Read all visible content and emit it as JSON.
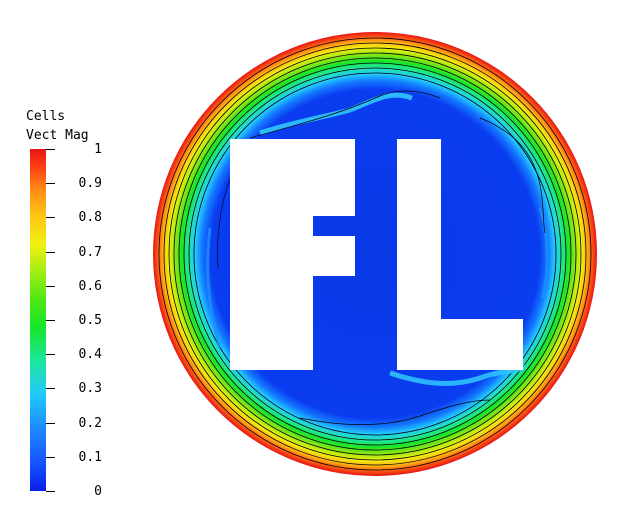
{
  "legend": {
    "title_line1": "Cells",
    "title_line2": "Vect Mag",
    "ticks": [
      "1",
      "0.9",
      "0.8",
      "0.7",
      "0.6",
      "0.5",
      "0.4",
      "0.3",
      "0.2",
      "0.1",
      "0"
    ]
  },
  "colors": {
    "max_red": "#e61414",
    "min_blue": "#0a2ce6",
    "contour_line": "#000000",
    "letters_fill": "#ffffff"
  },
  "plot": {
    "letters": [
      "F",
      "L"
    ]
  }
}
